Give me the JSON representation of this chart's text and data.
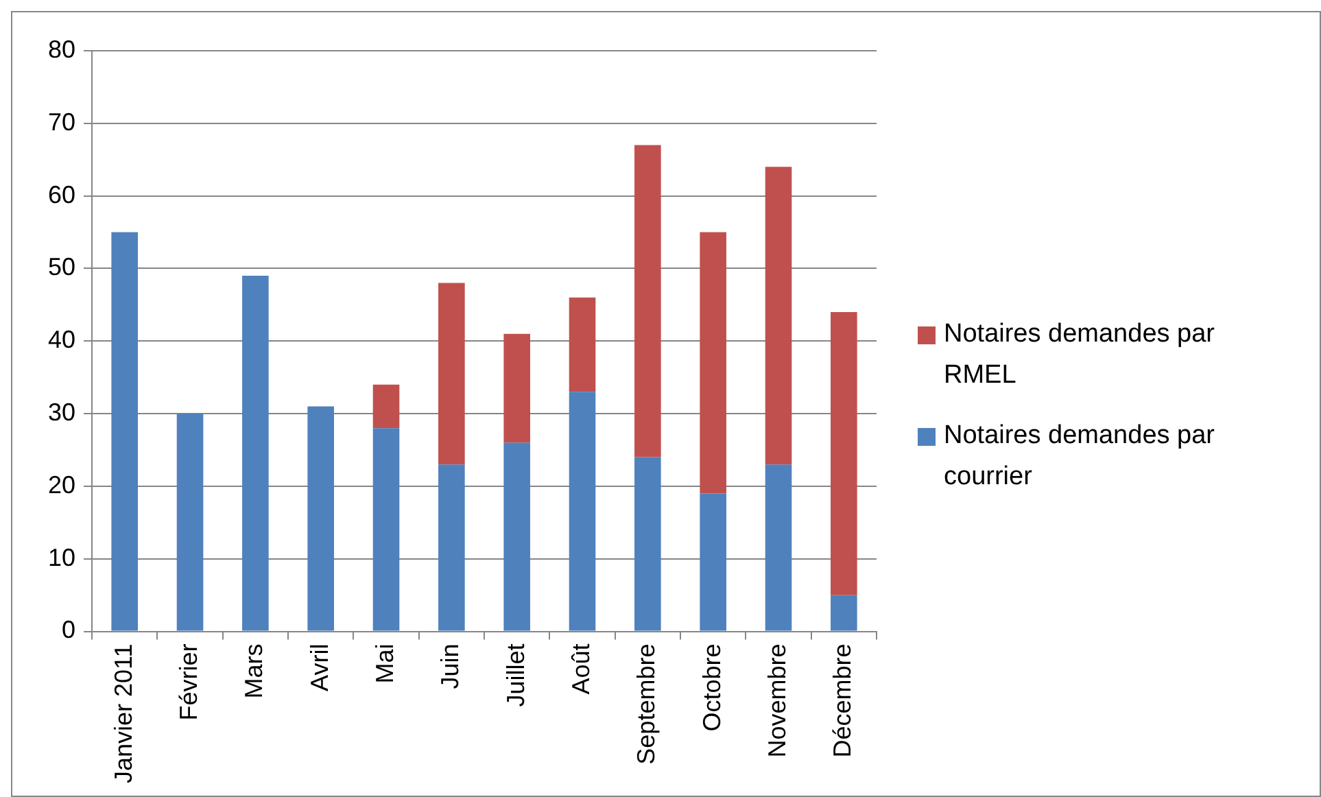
{
  "chart_data": {
    "type": "bar",
    "stacked": true,
    "categories": [
      "Janvier 2011",
      "Février",
      "Mars",
      "Avril",
      "Mai",
      "Juin",
      "Juillet",
      "Août",
      "Septembre",
      "Octobre",
      "Novembre",
      "Décembre"
    ],
    "series": [
      {
        "name": "Notaires demandes par courrier",
        "color": "#4f81bd",
        "values": [
          55,
          30,
          49,
          31,
          28,
          23,
          26,
          33,
          24,
          19,
          23,
          5
        ]
      },
      {
        "name": "Notaires demandes par RMEL",
        "color": "#c0504d",
        "values": [
          0,
          0,
          0,
          0,
          6,
          25,
          15,
          13,
          43,
          36,
          41,
          39
        ]
      }
    ],
    "ylim": [
      0,
      80
    ],
    "yticks": [
      0,
      10,
      20,
      30,
      40,
      50,
      60,
      70,
      80
    ],
    "grid": "y",
    "legend": "right"
  }
}
